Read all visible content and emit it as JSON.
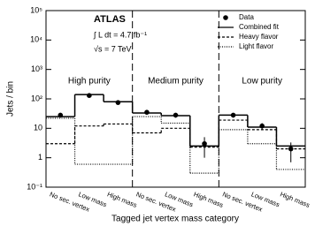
{
  "chart_data": {
    "type": "step",
    "y_label": "Jets / bin",
    "x_label": "Tagged jet vertex mass category",
    "log_y": true,
    "ylim": [
      0.1,
      100000
    ],
    "yticks": [
      {
        "value": 0.1,
        "label": "10⁻¹"
      },
      1,
      10,
      {
        "value": 100,
        "label": "10²"
      },
      {
        "value": 1000,
        "label": "10³"
      },
      {
        "value": 10000,
        "label": "10⁴"
      },
      {
        "value": 100000,
        "label": "10⁵"
      }
    ],
    "categories": [
      "No sec. vertex",
      "Low mass",
      "High mass",
      "No sec. vertex",
      "Low mass",
      "High mass",
      "No sec. vertex",
      "Low mass",
      "High mass"
    ],
    "regions": [
      "High purity",
      "Medium purity",
      "Low purity"
    ],
    "annotations": [
      "ATLAS",
      "∫ L dt = 4.7 fb⁻¹",
      "√s = 7 TeV"
    ],
    "legend_position": "upper right",
    "series": [
      {
        "name": "Data",
        "color": "#000000",
        "style": "marker",
        "values": [
          28,
          130,
          75,
          35,
          28,
          3,
          28,
          12,
          2
        ],
        "errors": [
          5,
          15,
          9,
          6,
          5,
          2,
          5,
          3,
          1.3
        ]
      },
      {
        "name": "Combined fit",
        "color": "#000000",
        "style": "solid",
        "values": [
          25,
          140,
          80,
          33,
          27,
          2.5,
          28,
          11,
          2.5
        ]
      },
      {
        "name": "Heavy flavor",
        "color": "#000000",
        "style": "dashed",
        "values": [
          3,
          12,
          14,
          7,
          10,
          2.3,
          19,
          9,
          2
        ]
      },
      {
        "name": "Light flavor",
        "color": "#000000",
        "style": "dotted",
        "values": [
          22,
          0.6,
          0.6,
          25,
          15,
          0.3,
          9,
          3,
          0.4
        ]
      }
    ]
  }
}
